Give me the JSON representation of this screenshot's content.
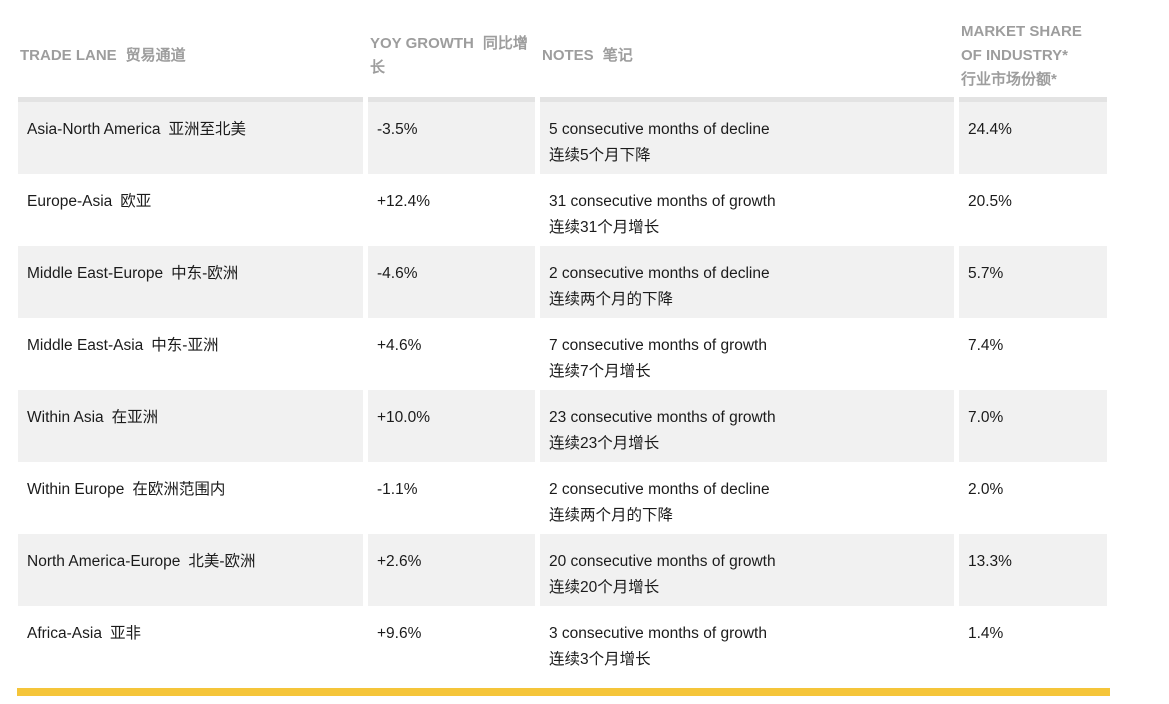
{
  "colors": {
    "accent_bar": "#f5c53a",
    "row_stripe": "#f1f1f1",
    "table_top_border": "#e3e3e3",
    "header_text": "#9d9d9d",
    "body_text": "#1b1b1b"
  },
  "table": {
    "columns": [
      {
        "label_en": "TRADE LANE",
        "label_zh": "贸易通道"
      },
      {
        "label_en": "YOY GROWTH",
        "label_zh": "同比增长"
      },
      {
        "label_en": "NOTES",
        "label_zh": "笔记"
      },
      {
        "label_en": "MARKET SHARE OF INDUSTRY*",
        "label_zh": "行业市场份额*"
      }
    ],
    "rows": [
      {
        "lane_en": "Asia-North America",
        "lane_zh": "亚洲至北美",
        "growth": "-3.5%",
        "note_en": "5 consecutive months of decline",
        "note_zh": "连续5个月下降",
        "share": "24.4%"
      },
      {
        "lane_en": "Europe-Asia",
        "lane_zh": "欧亚",
        "growth": "+12.4%",
        "note_en": "31 consecutive months of growth",
        "note_zh": "连续31个月增长",
        "share": "20.5%"
      },
      {
        "lane_en": "Middle East-Europe",
        "lane_zh": "中东-欧洲",
        "growth": "-4.6%",
        "note_en": "2 consecutive months of decline",
        "note_zh": "连续两个月的下降",
        "share": "5.7%"
      },
      {
        "lane_en": "Middle East-Asia",
        "lane_zh": "中东-亚洲",
        "growth": "+4.6%",
        "note_en": "7 consecutive months of growth",
        "note_zh": "连续7个月增长",
        "share": "7.4%"
      },
      {
        "lane_en": "Within Asia",
        "lane_zh": "在亚洲",
        "growth": "+10.0%",
        "note_en": "23 consecutive months of growth",
        "note_zh": "连续23个月增长",
        "share": "7.0%"
      },
      {
        "lane_en": "Within Europe",
        "lane_zh": "在欧洲范围内",
        "growth": "-1.1%",
        "note_en": "2 consecutive months of decline",
        "note_zh": "连续两个月的下降",
        "share": "2.0%"
      },
      {
        "lane_en": "North America-Europe",
        "lane_zh": "北美-欧洲",
        "growth": "+2.6%",
        "note_en": "20 consecutive months of growth",
        "note_zh": "连续20个月增长",
        "share": "13.3%"
      },
      {
        "lane_en": "Africa-Asia",
        "lane_zh": "亚非",
        "growth": "+9.6%",
        "note_en": "3 consecutive months of growth",
        "note_zh": "连续3个月增长",
        "share": "1.4%"
      }
    ]
  }
}
